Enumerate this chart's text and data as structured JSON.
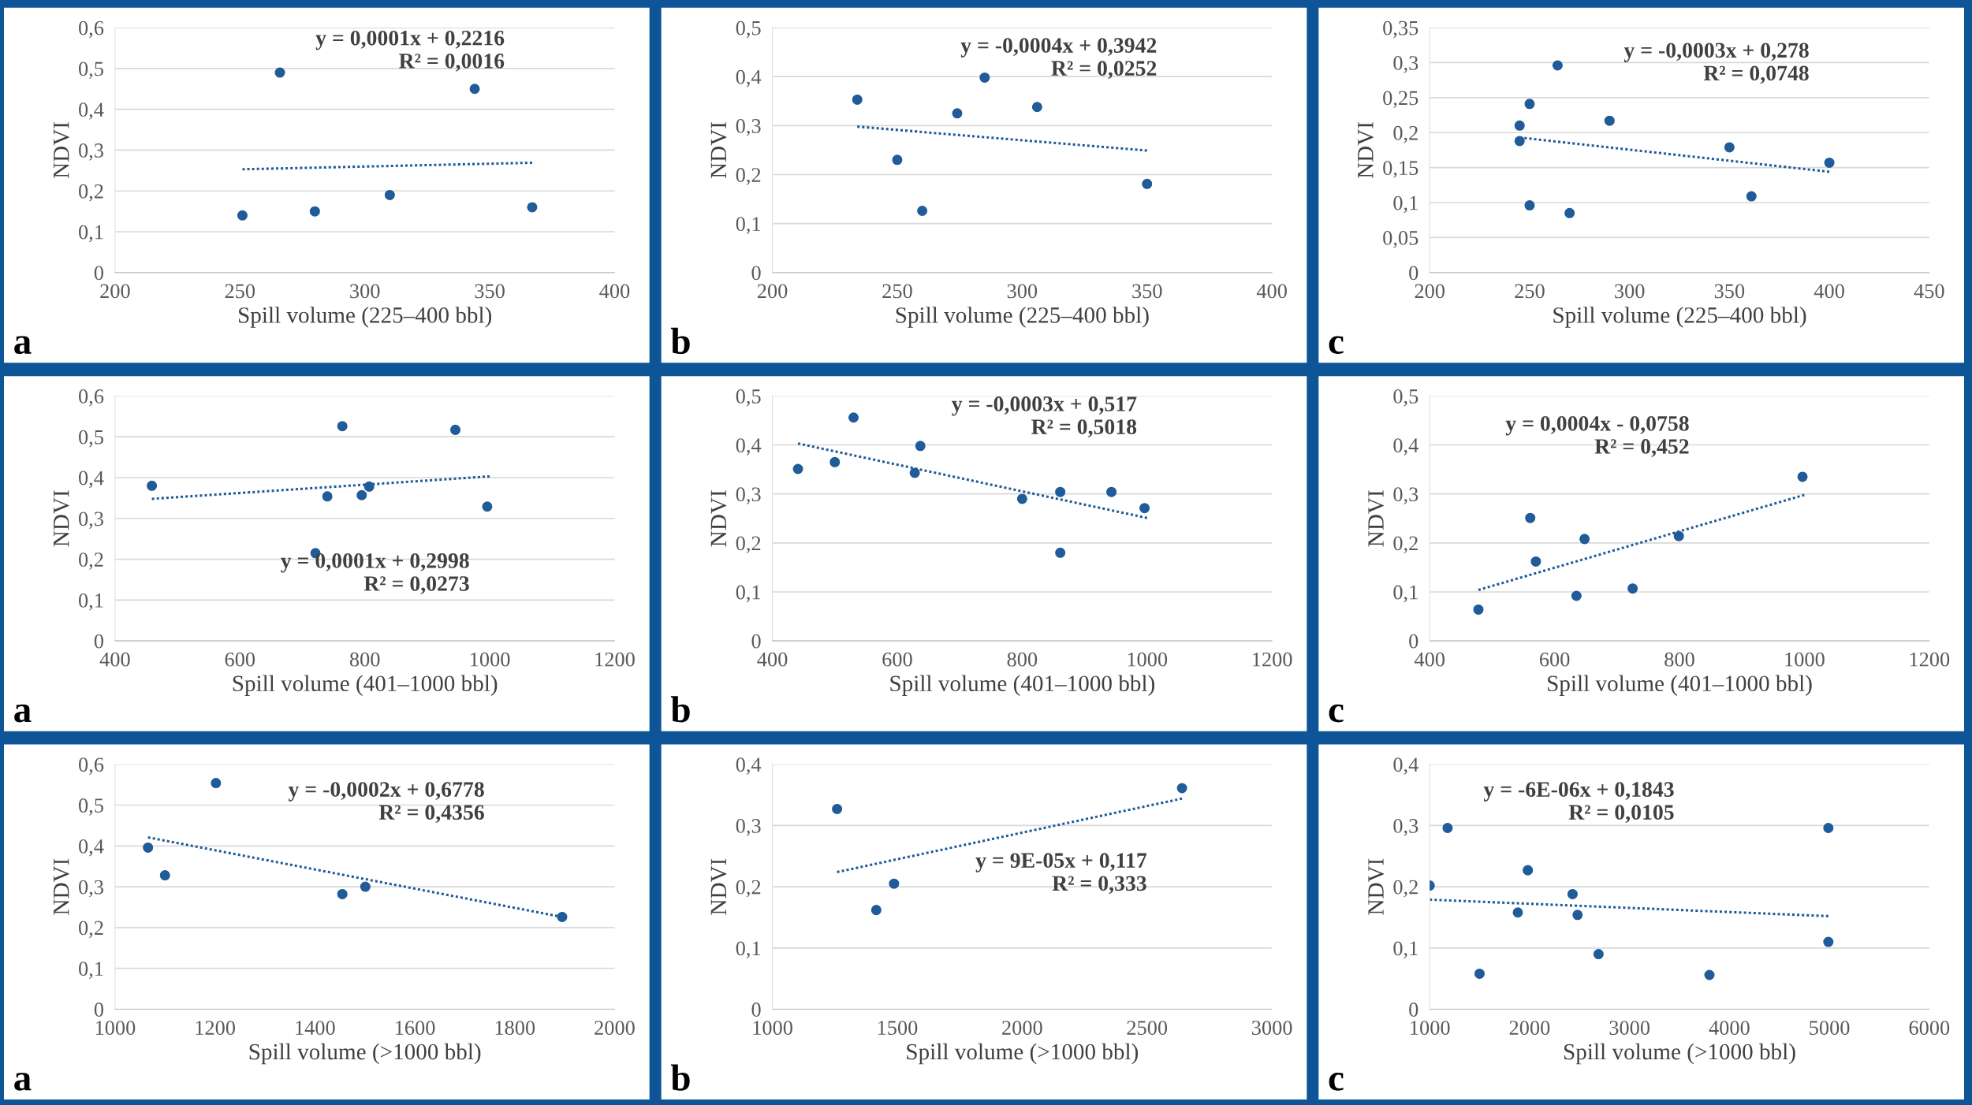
{
  "chart_data": [
    {
      "type": "scatter",
      "xlabel": "Spill volume (225–400 bbl)",
      "ylabel": "NDVI",
      "xlim": [
        200,
        400
      ],
      "xticks": [
        200,
        250,
        300,
        350,
        400
      ],
      "ylim": [
        0,
        0.6
      ],
      "yticks": [
        {
          "value": 0,
          "label": "0"
        },
        {
          "value": 0.1,
          "label": "0,1"
        },
        {
          "value": 0.2,
          "label": "0,2"
        },
        {
          "value": 0.3,
          "label": "0,3"
        },
        {
          "value": 0.4,
          "label": "0,4"
        },
        {
          "value": 0.5,
          "label": "0,5"
        },
        {
          "value": 0.6,
          "label": "0,6"
        }
      ],
      "grid": "y",
      "annotations": [
        "y = 0,0001x + 0,2216",
        "R² = 0,0016",
        "a"
      ],
      "series": [
        {
          "marker": "circle",
          "color": "#1f5c99",
          "x": [
            251,
            266,
            280,
            310,
            344,
            367
          ],
          "values": [
            0.14,
            0.49,
            0.15,
            0.19,
            0.45,
            0.16
          ]
        },
        {
          "type": "line",
          "marker": "none",
          "line_style": "dotted",
          "color": "#1f5c99",
          "x": [
            251,
            367
          ],
          "values": [
            0.253,
            0.269
          ]
        }
      ]
    },
    {
      "type": "scatter",
      "xlabel": "Spill volume (225–400 bbl)",
      "ylabel": "NDVI",
      "xlim": [
        200,
        400
      ],
      "xticks": [
        200,
        250,
        300,
        350,
        400
      ],
      "ylim": [
        0,
        0.5
      ],
      "yticks": [
        {
          "value": 0,
          "label": "0"
        },
        {
          "value": 0.1,
          "label": "0,1"
        },
        {
          "value": 0.2,
          "label": "0,2"
        },
        {
          "value": 0.3,
          "label": "0,3"
        },
        {
          "value": 0.4,
          "label": "0,4"
        },
        {
          "value": 0.5,
          "label": "0,5"
        }
      ],
      "grid": "y",
      "annotations": [
        "y = -0,0004x + 0,3942",
        "R² = 0,0252",
        "b"
      ],
      "series": [
        {
          "marker": "circle",
          "color": "#1f5c99",
          "x": [
            234,
            250,
            260,
            274,
            285,
            306,
            350
          ],
          "values": [
            0.353,
            0.23,
            0.126,
            0.325,
            0.398,
            0.338,
            0.181
          ]
        },
        {
          "type": "line",
          "marker": "none",
          "line_style": "dotted",
          "color": "#1f5c99",
          "x": [
            234,
            350
          ],
          "values": [
            0.298,
            0.249
          ]
        }
      ]
    },
    {
      "type": "scatter",
      "xlabel": "Spill volume (225–400 bbl)",
      "ylabel": "NDVI",
      "xlim": [
        200,
        450
      ],
      "xticks": [
        200,
        250,
        300,
        350,
        400,
        450
      ],
      "ylim": [
        0,
        0.35
      ],
      "yticks": [
        {
          "value": 0,
          "label": "0"
        },
        {
          "value": 0.05,
          "label": "0,05"
        },
        {
          "value": 0.1,
          "label": "0,1"
        },
        {
          "value": 0.15,
          "label": "0,15"
        },
        {
          "value": 0.2,
          "label": "0,2"
        },
        {
          "value": 0.25,
          "label": "0,25"
        },
        {
          "value": 0.3,
          "label": "0,3"
        },
        {
          "value": 0.35,
          "label": "0,35"
        }
      ],
      "grid": "y",
      "annotations": [
        "y = -0,0003x + 0,278",
        "R² = 0,0748",
        "c"
      ],
      "series": [
        {
          "marker": "circle",
          "color": "#1f5c99",
          "x": [
            245,
            245,
            250,
            250,
            264,
            270,
            290,
            350,
            361,
            400
          ],
          "values": [
            0.21,
            0.188,
            0.241,
            0.096,
            0.296,
            0.085,
            0.217,
            0.179,
            0.109,
            0.157
          ]
        },
        {
          "type": "line",
          "marker": "none",
          "line_style": "dotted",
          "color": "#1f5c99",
          "x": [
            245,
            400
          ],
          "values": [
            0.193,
            0.144
          ]
        }
      ]
    },
    {
      "type": "scatter",
      "xlabel": "Spill volume (401–1000 bbl)",
      "ylabel": "NDVI",
      "xlim": [
        400,
        1200
      ],
      "xticks": [
        400,
        600,
        800,
        1000,
        1200
      ],
      "ylim": [
        0,
        0.6
      ],
      "yticks": [
        {
          "value": 0,
          "label": "0"
        },
        {
          "value": 0.1,
          "label": "0,1"
        },
        {
          "value": 0.2,
          "label": "0,2"
        },
        {
          "value": 0.3,
          "label": "0,3"
        },
        {
          "value": 0.4,
          "label": "0,4"
        },
        {
          "value": 0.5,
          "label": "0,5"
        },
        {
          "value": 0.6,
          "label": "0,6"
        }
      ],
      "grid": "y",
      "annotations": [
        "y = 0,0001x + 0,2998",
        "R² = 0,0273",
        "a"
      ],
      "series": [
        {
          "marker": "circle",
          "color": "#1f5c99",
          "x": [
            459,
            721,
            740,
            764,
            795,
            807,
            945,
            996
          ],
          "values": [
            0.38,
            0.215,
            0.354,
            0.526,
            0.357,
            0.378,
            0.517,
            0.329
          ]
        },
        {
          "type": "line",
          "marker": "none",
          "line_style": "dotted",
          "color": "#1f5c99",
          "x": [
            459,
            1000
          ],
          "values": [
            0.348,
            0.403
          ]
        }
      ]
    },
    {
      "type": "scatter",
      "xlabel": "Spill volume (401–1000 bbl)",
      "ylabel": "NDVI",
      "xlim": [
        400,
        1200
      ],
      "xticks": [
        400,
        600,
        800,
        1000,
        1200
      ],
      "ylim": [
        0,
        0.5
      ],
      "yticks": [
        {
          "value": 0,
          "label": "0"
        },
        {
          "value": 0.1,
          "label": "0,1"
        },
        {
          "value": 0.2,
          "label": "0,2"
        },
        {
          "value": 0.3,
          "label": "0,3"
        },
        {
          "value": 0.4,
          "label": "0,4"
        },
        {
          "value": 0.5,
          "label": "0,5"
        }
      ],
      "grid": "y",
      "annotations": [
        "y = -0,0003x + 0,517",
        "R² = 0,5018",
        "b"
      ],
      "series": [
        {
          "marker": "circle",
          "color": "#1f5c99",
          "x": [
            441,
            500,
            530,
            628,
            637,
            800,
            861,
            861,
            943,
            996
          ],
          "values": [
            0.351,
            0.365,
            0.456,
            0.343,
            0.398,
            0.29,
            0.304,
            0.18,
            0.304,
            0.271
          ]
        },
        {
          "type": "line",
          "marker": "none",
          "line_style": "dotted",
          "color": "#1f5c99",
          "x": [
            441,
            1000
          ],
          "values": [
            0.403,
            0.251
          ]
        }
      ]
    },
    {
      "type": "scatter",
      "xlabel": "Spill volume (401–1000 bbl)",
      "ylabel": "NDVI",
      "xlim": [
        400,
        1200
      ],
      "xticks": [
        400,
        600,
        800,
        1000,
        1200
      ],
      "ylim": [
        0,
        0.5
      ],
      "yticks": [
        {
          "value": 0,
          "label": "0"
        },
        {
          "value": 0.1,
          "label": "0,1"
        },
        {
          "value": 0.2,
          "label": "0,2"
        },
        {
          "value": 0.3,
          "label": "0,3"
        },
        {
          "value": 0.4,
          "label": "0,4"
        },
        {
          "value": 0.5,
          "label": "0,5"
        }
      ],
      "grid": "y",
      "annotations": [
        "y = 0,0004x - 0,0758",
        "R² = 0,452",
        "c"
      ],
      "series": [
        {
          "marker": "circle",
          "color": "#1f5c99",
          "x": [
            478,
            561,
            570,
            635,
            648,
            725,
            799,
            997
          ],
          "values": [
            0.064,
            0.251,
            0.162,
            0.092,
            0.208,
            0.107,
            0.214,
            0.335
          ]
        },
        {
          "type": "line",
          "marker": "none",
          "line_style": "dotted",
          "color": "#1f5c99",
          "x": [
            478,
            1000
          ],
          "values": [
            0.104,
            0.298
          ]
        }
      ]
    },
    {
      "type": "scatter",
      "xlabel": "Spill volume (>1000 bbl)",
      "ylabel": "NDVI",
      "xlim": [
        1000,
        2000
      ],
      "xticks": [
        1000,
        1200,
        1400,
        1600,
        1800,
        2000
      ],
      "ylim": [
        0,
        0.6
      ],
      "yticks": [
        {
          "value": 0,
          "label": "0"
        },
        {
          "value": 0.1,
          "label": "0,1"
        },
        {
          "value": 0.2,
          "label": "0,2"
        },
        {
          "value": 0.3,
          "label": "0,3"
        },
        {
          "value": 0.4,
          "label": "0,4"
        },
        {
          "value": 0.5,
          "label": "0,5"
        },
        {
          "value": 0.6,
          "label": "0,6"
        }
      ],
      "grid": "y",
      "annotations": [
        "y = -0,0002x + 0,6778",
        "R² = 0,4356",
        "a"
      ],
      "series": [
        {
          "marker": "circle",
          "color": "#1f5c99",
          "x": [
            1066,
            1100,
            1202,
            1455,
            1501,
            1895
          ],
          "values": [
            0.396,
            0.328,
            0.554,
            0.282,
            0.3,
            0.226
          ]
        },
        {
          "type": "line",
          "marker": "none",
          "line_style": "dotted",
          "color": "#1f5c99",
          "x": [
            1066,
            1895
          ],
          "values": [
            0.421,
            0.226
          ]
        }
      ]
    },
    {
      "type": "scatter",
      "xlabel": "Spill volume (>1000 bbl)",
      "ylabel": "NDVI",
      "xlim": [
        1000,
        3000
      ],
      "xticks": [
        1000,
        1500,
        2000,
        2500,
        3000
      ],
      "ylim": [
        0,
        0.4
      ],
      "yticks": [
        {
          "value": 0,
          "label": "0"
        },
        {
          "value": 0.1,
          "label": "0,1"
        },
        {
          "value": 0.2,
          "label": "0,2"
        },
        {
          "value": 0.3,
          "label": "0,3"
        },
        {
          "value": 0.4,
          "label": "0,4"
        }
      ],
      "grid": "y",
      "annotations": [
        "y = 9E-05x + 0,117",
        "R² = 0,333",
        "b"
      ],
      "series": [
        {
          "marker": "circle",
          "color": "#1f5c99",
          "x": [
            1259,
            1416,
            1487,
            2640
          ],
          "values": [
            0.327,
            0.162,
            0.205,
            0.361
          ]
        },
        {
          "type": "line",
          "marker": "none",
          "line_style": "dotted",
          "color": "#1f5c99",
          "x": [
            1259,
            2640
          ],
          "values": [
            0.224,
            0.344
          ]
        }
      ]
    },
    {
      "type": "scatter",
      "xlabel": "Spill volume (>1000 bbl)",
      "ylabel": "NDVI",
      "xlim": [
        1000,
        6000
      ],
      "xticks": [
        1000,
        2000,
        3000,
        4000,
        5000,
        6000
      ],
      "ylim": [
        0,
        0.4
      ],
      "yticks": [
        {
          "value": 0,
          "label": "0"
        },
        {
          "value": 0.1,
          "label": "0,1"
        },
        {
          "value": 0.2,
          "label": "0,2"
        },
        {
          "value": 0.3,
          "label": "0,3"
        },
        {
          "value": 0.4,
          "label": "0,4"
        }
      ],
      "grid": "y",
      "annotations": [
        "y = -6E-06x + 0,1843",
        "R² = 0,0105",
        "c"
      ],
      "series": [
        {
          "marker": "circle",
          "color": "#1f5c99",
          "x": [
            1000,
            1179,
            1499,
            1882,
            1982,
            2430,
            2480,
            2690,
            3800,
            4990,
            4990
          ],
          "values": [
            0.202,
            0.296,
            0.058,
            0.158,
            0.227,
            0.188,
            0.154,
            0.09,
            0.056,
            0.296,
            0.11
          ]
        },
        {
          "type": "line",
          "marker": "none",
          "line_style": "dotted",
          "color": "#1f5c99",
          "x": [
            1000,
            4990
          ],
          "values": [
            0.179,
            0.152
          ]
        }
      ]
    }
  ]
}
